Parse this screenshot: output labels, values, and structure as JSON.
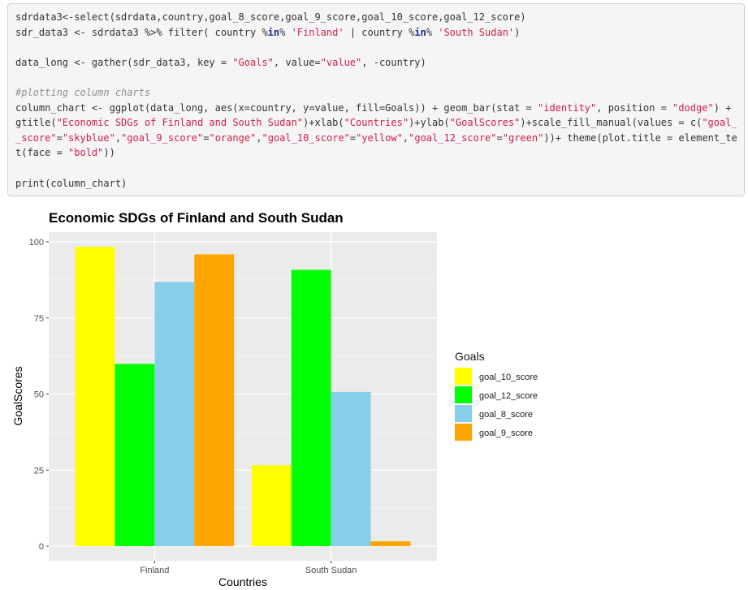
{
  "code": {
    "lines": [
      [
        {
          "t": "sdrdata3<-select(sdrdata,country,goal_8_score,goal_9_score,goal_10_score,goal_12_score)",
          "c": "plain"
        }
      ],
      [
        {
          "t": "sdr_data3 <- sdrdata3 %>% filter( country ",
          "c": "plain"
        },
        {
          "t": "%",
          "c": "plain"
        },
        {
          "t": "in",
          "c": "kw"
        },
        {
          "t": "% ",
          "c": "plain"
        },
        {
          "t": "'Finland'",
          "c": "str"
        },
        {
          "t": " | country ",
          "c": "plain"
        },
        {
          "t": "%",
          "c": "plain"
        },
        {
          "t": "in",
          "c": "kw"
        },
        {
          "t": "% ",
          "c": "plain"
        },
        {
          "t": "'South Sudan'",
          "c": "str"
        },
        {
          "t": ")",
          "c": "plain"
        }
      ],
      [],
      [
        {
          "t": "data_long <- gather(sdr_data3, key = ",
          "c": "plain"
        },
        {
          "t": "\"Goals\"",
          "c": "str"
        },
        {
          "t": ", value=",
          "c": "plain"
        },
        {
          "t": "\"value\"",
          "c": "str"
        },
        {
          "t": ", -country)",
          "c": "plain"
        }
      ],
      [],
      [
        {
          "t": "#plotting column charts",
          "c": "cm"
        }
      ],
      [
        {
          "t": "column_chart <- ggplot(data_long, aes(x=country, y=value, fill=Goals)) + geom_bar(stat = ",
          "c": "plain"
        },
        {
          "t": "\"identity\"",
          "c": "str"
        },
        {
          "t": ", position = ",
          "c": "plain"
        },
        {
          "t": "\"dodge\"",
          "c": "str"
        },
        {
          "t": ") + g",
          "c": "plain"
        }
      ],
      [
        {
          "t": "gtitle(",
          "c": "plain"
        },
        {
          "t": "\"Economic SDGs of Finland and South Sudan\"",
          "c": "str"
        },
        {
          "t": ")+xlab(",
          "c": "plain"
        },
        {
          "t": "\"Countries\"",
          "c": "str"
        },
        {
          "t": ")+ylab(",
          "c": "plain"
        },
        {
          "t": "\"GoalScores\"",
          "c": "str"
        },
        {
          "t": ")+scale_fill_manual(values = c(",
          "c": "plain"
        },
        {
          "t": "\"goal_8",
          "c": "str"
        }
      ],
      [
        {
          "t": "_score\"",
          "c": "str"
        },
        {
          "t": "=",
          "c": "plain"
        },
        {
          "t": "\"skyblue\"",
          "c": "str"
        },
        {
          "t": ",",
          "c": "plain"
        },
        {
          "t": "\"goal_9_score\"",
          "c": "str"
        },
        {
          "t": "=",
          "c": "plain"
        },
        {
          "t": "\"orange\"",
          "c": "str"
        },
        {
          "t": ",",
          "c": "plain"
        },
        {
          "t": "\"goal_10_score\"",
          "c": "str"
        },
        {
          "t": "=",
          "c": "plain"
        },
        {
          "t": "\"yellow\"",
          "c": "str"
        },
        {
          "t": ",",
          "c": "plain"
        },
        {
          "t": "\"goal_12_score\"",
          "c": "str"
        },
        {
          "t": "=",
          "c": "plain"
        },
        {
          "t": "\"green\"",
          "c": "str"
        },
        {
          "t": "))+ theme(plot.title = element_tex",
          "c": "plain"
        }
      ],
      [
        {
          "t": "t(face = ",
          "c": "plain"
        },
        {
          "t": "\"bold\"",
          "c": "str"
        },
        {
          "t": "))",
          "c": "plain"
        }
      ],
      [],
      [
        {
          "t": "print(column_chart)",
          "c": "plain"
        }
      ]
    ]
  },
  "chart_data": {
    "type": "bar",
    "title": "Economic SDGs of Finland and South Sudan",
    "xlabel": "Countries",
    "ylabel": "GoalScores",
    "categories": [
      "Finland",
      "South Sudan"
    ],
    "ylim": [
      0,
      100
    ],
    "yticks": [
      0,
      25,
      50,
      75,
      100
    ],
    "grid": true,
    "legend": {
      "title": "Goals",
      "placement": "right"
    },
    "series": [
      {
        "name": "goal_10_score",
        "color": "#ffff00",
        "values": [
          98.4,
          26.6
        ]
      },
      {
        "name": "goal_12_score",
        "color": "#00ff00",
        "values": [
          59.9,
          90.8
        ]
      },
      {
        "name": "goal_8_score",
        "color": "#87ceeb",
        "values": [
          86.8,
          50.7
        ]
      },
      {
        "name": "goal_9_score",
        "color": "#ffa500",
        "values": [
          95.9,
          1.6
        ]
      }
    ],
    "panel_color": "#ebebeb",
    "grid_color": "#ffffff"
  }
}
